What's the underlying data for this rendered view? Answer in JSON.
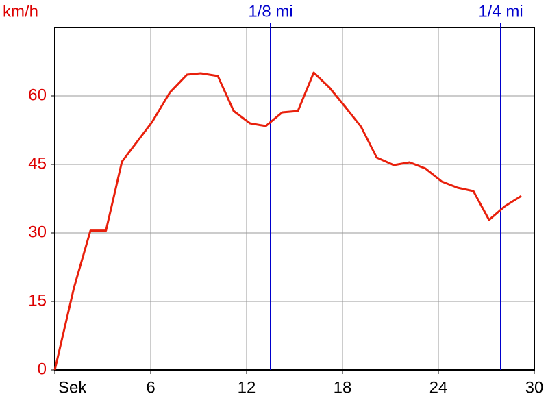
{
  "chart_data": {
    "type": "line",
    "y_label": "km/h",
    "x": [
      0,
      1.2,
      2.23,
      3.2,
      4.2,
      6.09,
      7.2,
      8.27,
      9.13,
      10.2,
      11.19,
      12.21,
      13.2,
      14.23,
      15.21,
      16.2,
      17.19,
      18.17,
      19.16,
      20.14,
      21.21,
      22.2,
      23.19,
      24.21,
      25.2,
      26.19,
      27.17,
      28.16,
      29.19
    ],
    "values": [
      0,
      18,
      30.5,
      30.5,
      45.6,
      54.3,
      60.75,
      64.65,
      64.95,
      64.35,
      56.7,
      54,
      53.4,
      56.4,
      56.7,
      65.1,
      61.8,
      57.6,
      53.25,
      46.5,
      44.85,
      45.45,
      44.1,
      41.25,
      39.9,
      39.15,
      32.85,
      35.85,
      38.1
    ],
    "color": "#e8200c",
    "xlim": [
      0,
      30
    ],
    "xticks": [
      {
        "value": 0,
        "label": "Sek"
      },
      6,
      12,
      18,
      24,
      30
    ],
    "ylim": [
      0,
      75
    ],
    "yticks": [
      0,
      15,
      30,
      45,
      60
    ],
    "grid": true,
    "markers": [
      {
        "label": "1/8 mi",
        "x": 13.5
      },
      {
        "label": "1/4 mi",
        "x": 27.9
      }
    ],
    "marker_color": "#0000cc",
    "axis_label_color": "#dd0000"
  }
}
